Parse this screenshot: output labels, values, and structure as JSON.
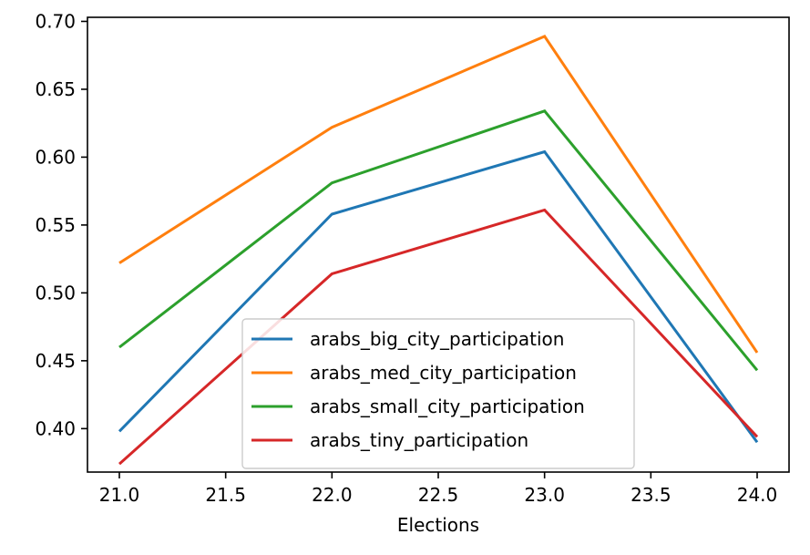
{
  "chart_data": {
    "type": "line",
    "title": "",
    "xlabel": "Elections",
    "ylabel": "",
    "x": [
      21.0,
      22.0,
      23.0,
      24.0
    ],
    "xlim": [
      20.85,
      24.15
    ],
    "ylim": [
      0.368,
      0.703
    ],
    "xticks": [
      21.0,
      21.5,
      22.0,
      22.5,
      23.0,
      23.5,
      24.0
    ],
    "xtick_labels": [
      "21.0",
      "21.5",
      "22.0",
      "22.5",
      "23.0",
      "23.5",
      "24.0"
    ],
    "yticks": [
      0.4,
      0.45,
      0.5,
      0.55,
      0.6,
      0.65,
      0.7
    ],
    "ytick_labels": [
      "0.40",
      "0.45",
      "0.50",
      "0.55",
      "0.60",
      "0.65",
      "0.70"
    ],
    "grid": false,
    "legend_position": "lower-center",
    "series": [
      {
        "name": "arabs_big_city_participation",
        "color": "#1f77b4",
        "values": [
          0.398,
          0.558,
          0.604,
          0.39
        ]
      },
      {
        "name": "arabs_med_city_participation",
        "color": "#ff7f0e",
        "values": [
          0.522,
          0.622,
          0.689,
          0.456
        ]
      },
      {
        "name": "arabs_small_city_participation",
        "color": "#2ca02c",
        "values": [
          0.46,
          0.581,
          0.634,
          0.443
        ]
      },
      {
        "name": "arabs_tiny_participation",
        "color": "#d62728",
        "values": [
          0.374,
          0.514,
          0.561,
          0.394
        ]
      }
    ]
  }
}
